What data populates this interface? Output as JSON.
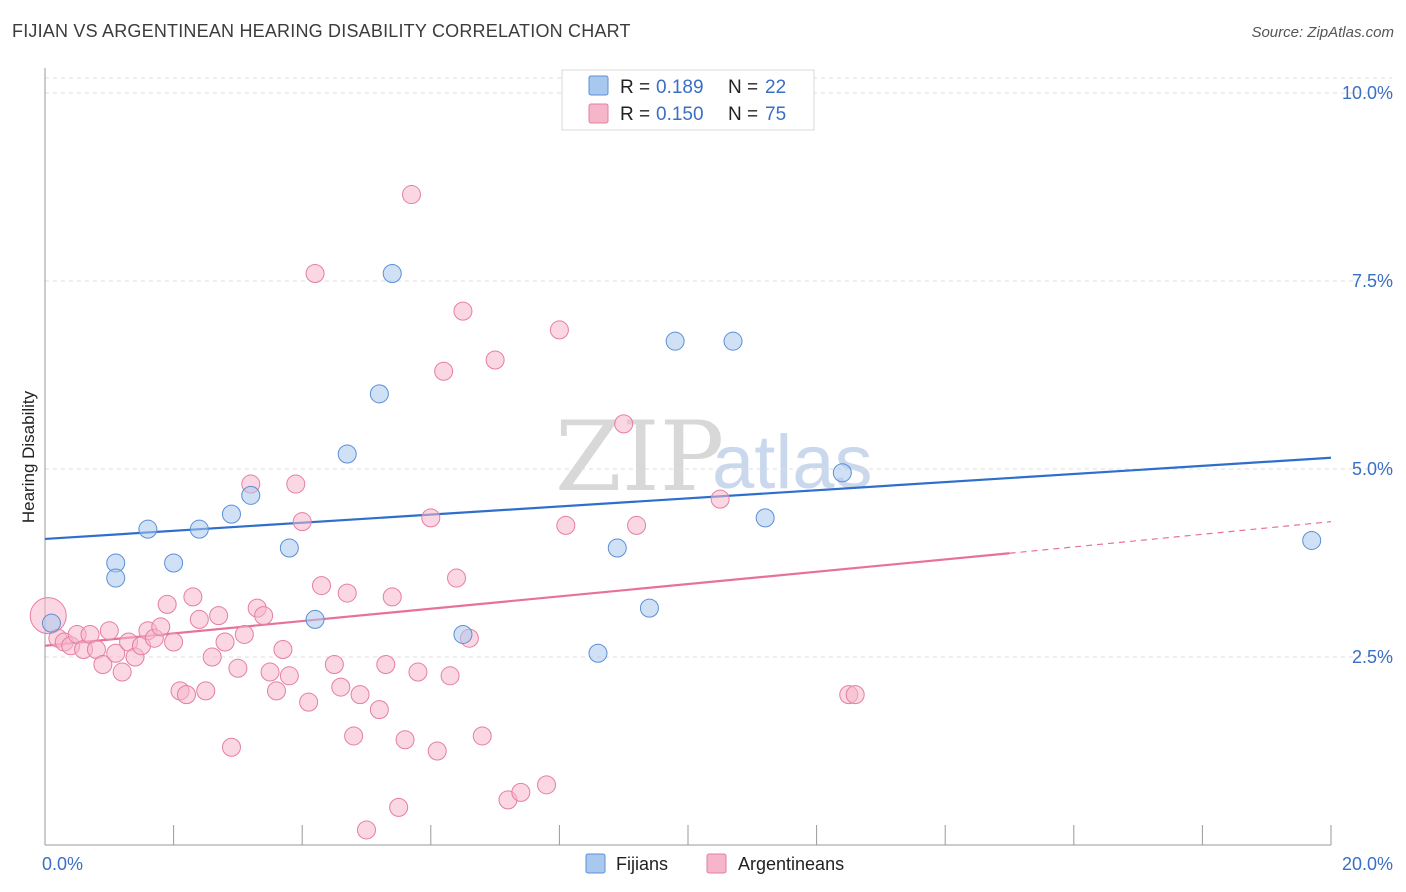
{
  "header": {
    "title": "FIJIAN VS ARGENTINEAN HEARING DISABILITY CORRELATION CHART",
    "source": "Source: ZipAtlas.com"
  },
  "watermark": {
    "part1": "ZIP",
    "part2": "atlas"
  },
  "legend": {
    "rows": [
      {
        "r_label": "R =",
        "r_value": "0.189",
        "n_label": "N =",
        "n_value": "22",
        "color": "#a9c8ef"
      },
      {
        "r_label": "R =",
        "r_value": "0.150",
        "n_label": "N =",
        "n_value": "75",
        "color": "#f6b6ca"
      }
    ]
  },
  "bottom_legend": {
    "items": [
      "Fijians",
      "Argentineans"
    ]
  },
  "chart_data": {
    "type": "scatter",
    "title": "FIJIAN VS ARGENTINEAN HEARING DISABILITY CORRELATION CHART",
    "xlabel": "",
    "ylabel": "Hearing Disability",
    "xlim": [
      0,
      20
    ],
    "ylim": [
      0,
      10.2
    ],
    "x_tick_labels": [
      "0.0%",
      "20.0%"
    ],
    "y_ticks": [
      2.5,
      5.0,
      7.5,
      10.0
    ],
    "y_tick_labels": [
      "2.5%",
      "5.0%",
      "7.5%",
      "10.0%"
    ],
    "grid": true,
    "legend_position": "top-center",
    "series": [
      {
        "name": "Fijians",
        "color": "#a9c8ef",
        "stroke": "#5b8fd6",
        "trend_color": "#2f6fcc",
        "trend": {
          "x0": 0,
          "y0": 4.07,
          "x1": 20,
          "y1": 5.15
        },
        "points": [
          [
            0.1,
            2.95
          ],
          [
            1.1,
            3.75
          ],
          [
            1.1,
            3.55
          ],
          [
            1.6,
            4.2
          ],
          [
            2.0,
            3.75
          ],
          [
            2.4,
            4.2
          ],
          [
            2.9,
            4.4
          ],
          [
            3.2,
            4.65
          ],
          [
            3.8,
            3.95
          ],
          [
            4.2,
            3.0
          ],
          [
            4.7,
            5.2
          ],
          [
            5.2,
            6.0
          ],
          [
            5.4,
            7.6
          ],
          [
            6.5,
            2.8
          ],
          [
            8.6,
            2.55
          ],
          [
            8.9,
            3.95
          ],
          [
            9.4,
            3.15
          ],
          [
            9.8,
            6.7
          ],
          [
            10.7,
            6.7
          ],
          [
            11.2,
            4.35
          ],
          [
            12.4,
            4.95
          ],
          [
            19.7,
            4.05
          ]
        ]
      },
      {
        "name": "Argentineans",
        "color": "#f6b6ca",
        "stroke": "#e57fa2",
        "trend_color": "#e8719b",
        "trend": {
          "x0": 0,
          "y0": 2.65,
          "x1": 15,
          "y1": 3.88
        },
        "trend_dashed": {
          "x0": 15,
          "y0": 3.88,
          "x1": 20,
          "y1": 4.3
        },
        "points": [
          [
            0.05,
            3.05
          ],
          [
            0.2,
            2.75
          ],
          [
            0.3,
            2.7
          ],
          [
            0.4,
            2.65
          ],
          [
            0.5,
            2.8
          ],
          [
            0.6,
            2.6
          ],
          [
            0.7,
            2.8
          ],
          [
            0.8,
            2.6
          ],
          [
            0.9,
            2.4
          ],
          [
            1.0,
            2.85
          ],
          [
            1.1,
            2.55
          ],
          [
            1.2,
            2.3
          ],
          [
            1.3,
            2.7
          ],
          [
            1.4,
            2.5
          ],
          [
            1.5,
            2.65
          ],
          [
            1.6,
            2.85
          ],
          [
            1.7,
            2.75
          ],
          [
            1.8,
            2.9
          ],
          [
            1.9,
            3.2
          ],
          [
            2.0,
            2.7
          ],
          [
            2.1,
            2.05
          ],
          [
            2.2,
            2.0
          ],
          [
            2.3,
            3.3
          ],
          [
            2.4,
            3.0
          ],
          [
            2.5,
            2.05
          ],
          [
            2.6,
            2.5
          ],
          [
            2.7,
            3.05
          ],
          [
            2.8,
            2.7
          ],
          [
            2.9,
            1.3
          ],
          [
            3.0,
            2.35
          ],
          [
            3.1,
            2.8
          ],
          [
            3.2,
            4.8
          ],
          [
            3.3,
            3.15
          ],
          [
            3.4,
            3.05
          ],
          [
            3.5,
            2.3
          ],
          [
            3.6,
            2.05
          ],
          [
            3.7,
            2.6
          ],
          [
            3.8,
            2.25
          ],
          [
            3.9,
            4.8
          ],
          [
            4.0,
            4.3
          ],
          [
            4.1,
            1.9
          ],
          [
            4.2,
            7.6
          ],
          [
            4.3,
            3.45
          ],
          [
            4.5,
            2.4
          ],
          [
            4.6,
            2.1
          ],
          [
            4.7,
            3.35
          ],
          [
            4.8,
            1.45
          ],
          [
            4.9,
            2.0
          ],
          [
            5.0,
            0.2
          ],
          [
            5.2,
            1.8
          ],
          [
            5.3,
            2.4
          ],
          [
            5.4,
            3.3
          ],
          [
            5.5,
            0.5
          ],
          [
            5.6,
            1.4
          ],
          [
            5.7,
            8.65
          ],
          [
            5.8,
            2.3
          ],
          [
            6.0,
            4.35
          ],
          [
            6.1,
            1.25
          ],
          [
            6.2,
            6.3
          ],
          [
            6.3,
            2.25
          ],
          [
            6.4,
            3.55
          ],
          [
            6.5,
            7.1
          ],
          [
            6.6,
            2.75
          ],
          [
            6.8,
            1.45
          ],
          [
            7.0,
            6.45
          ],
          [
            7.2,
            0.6
          ],
          [
            7.4,
            0.7
          ],
          [
            7.8,
            0.8
          ],
          [
            8.0,
            6.85
          ],
          [
            8.1,
            4.25
          ],
          [
            9.0,
            5.6
          ],
          [
            9.2,
            4.25
          ],
          [
            10.5,
            4.6
          ],
          [
            12.5,
            2.0
          ],
          [
            12.6,
            2.0
          ]
        ]
      }
    ]
  }
}
